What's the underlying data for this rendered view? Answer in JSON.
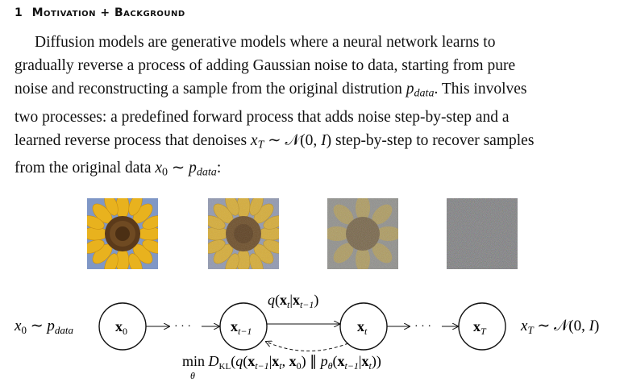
{
  "section": {
    "number": "1",
    "title": "Motivation + Background"
  },
  "paragraph": {
    "line1": "Diffusion models are generative models where a neural network learns to",
    "line2": "gradually reverse a process of adding Gaussian noise to data, starting from pure",
    "line3_pre": "noise and reconstructing a sample from the original distrution ",
    "line3_post": ". This involves",
    "line4": "two processes: a predefined forward process that adds noise step-by-step and a",
    "line5_pre": "learned reverse process that denoises ",
    "line5_post": " step-by-step to recover samples",
    "line6_pre": "from the original data ",
    "line6_post": ":"
  },
  "images": [
    {
      "name": "clean-sunflower",
      "noise_level": 0.0
    },
    {
      "name": "slightly-noisy-sunflower",
      "noise_level": 0.3
    },
    {
      "name": "noisy-sunflower",
      "noise_level": 0.65
    },
    {
      "name": "pure-noise",
      "noise_level": 1.0
    }
  ],
  "diagram": {
    "left_label": "x₀ ~ p",
    "left_label_sub": "data",
    "right_label": "x",
    "right_label_sub": "T",
    "right_label_rest": " ~ 𝒩(0, I)",
    "nodes": [
      "x₀",
      "xₜ₋₁",
      "xₜ",
      "x_T"
    ],
    "node_main": [
      "x",
      "x",
      "x",
      "x"
    ],
    "node_sub": [
      "0",
      "t−1",
      "t",
      "T"
    ],
    "ellipsis": "· · ·",
    "forward_label": "q(xₜ|xₜ₋₁)",
    "objective_min": "min",
    "objective_theta": "θ",
    "objective_rest": "D",
    "objective_kl": "KL",
    "objective_body": "(q(x",
    "objective_text": "(q(xₜ₋₁|xₜ, x₀) ∥ p_θ(xₜ₋₁|xₜ))"
  }
}
